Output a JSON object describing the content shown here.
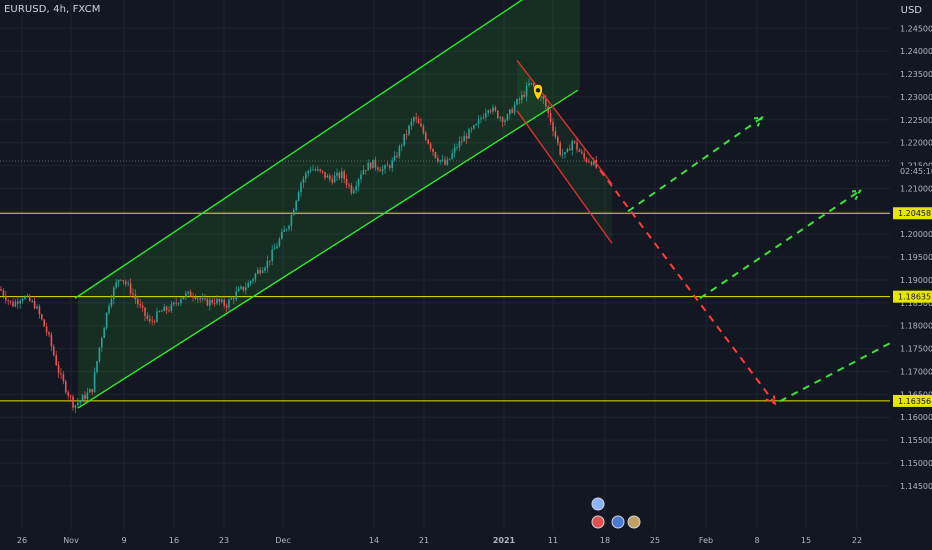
{
  "header": {
    "symbol_info": "EURUSD, 4h, FXCM",
    "currency": "USD"
  },
  "countdown": "02:45:10",
  "chart_data": {
    "type": "candlestick",
    "symbol": "EURUSD",
    "timeframe": "4h",
    "source": "FXCM",
    "currency": "USD",
    "y_ticks": [
      "1.24500",
      "1.24000",
      "1.23500",
      "1.23000",
      "1.22500",
      "1.22000",
      "1.21500",
      "1.21000",
      "1.20500",
      "1.20000",
      "1.19500",
      "1.19000",
      "1.18500",
      "1.18000",
      "1.17500",
      "1.17000",
      "1.16500",
      "1.16000",
      "1.15500",
      "1.15000",
      "1.14500"
    ],
    "ylim": [
      1.143,
      1.249
    ],
    "x_ticks": [
      "26",
      "Nov",
      "9",
      "16",
      "23",
      "Dec",
      "14",
      "21",
      "2021",
      "11",
      "18",
      "25",
      "Feb",
      "8",
      "15",
      "22"
    ],
    "price_path": [
      [
        0,
        1.188
      ],
      [
        12,
        1.1845
      ],
      [
        22,
        1.1865
      ],
      [
        35,
        1.1845
      ],
      [
        48,
        1.178
      ],
      [
        60,
        1.169
      ],
      [
        74,
        1.1625
      ],
      [
        82,
        1.164
      ],
      [
        92,
        1.166
      ],
      [
        100,
        1.176
      ],
      [
        110,
        1.186
      ],
      [
        120,
        1.191
      ],
      [
        130,
        1.188
      ],
      [
        140,
        1.184
      ],
      [
        150,
        1.1805
      ],
      [
        160,
        1.183
      ],
      [
        172,
        1.184
      ],
      [
        182,
        1.1865
      ],
      [
        194,
        1.187
      ],
      [
        204,
        1.185
      ],
      [
        215,
        1.1855
      ],
      [
        226,
        1.1845
      ],
      [
        236,
        1.187
      ],
      [
        248,
        1.189
      ],
      [
        258,
        1.192
      ],
      [
        268,
        1.194
      ],
      [
        280,
        1.199
      ],
      [
        290,
        1.203
      ],
      [
        300,
        1.211
      ],
      [
        310,
        1.2145
      ],
      [
        320,
        1.2135
      ],
      [
        330,
        1.212
      ],
      [
        342,
        1.213
      ],
      [
        352,
        1.2095
      ],
      [
        362,
        1.214
      ],
      [
        372,
        1.2155
      ],
      [
        384,
        1.214
      ],
      [
        394,
        1.216
      ],
      [
        404,
        1.221
      ],
      [
        414,
        1.2255
      ],
      [
        424,
        1.222
      ],
      [
        436,
        1.217
      ],
      [
        446,
        1.215
      ],
      [
        456,
        1.219
      ],
      [
        466,
        1.2215
      ],
      [
        476,
        1.2235
      ],
      [
        488,
        1.228
      ],
      [
        498,
        1.226
      ],
      [
        506,
        1.225
      ],
      [
        514,
        1.228
      ],
      [
        522,
        1.23
      ],
      [
        530,
        1.233
      ],
      [
        537,
        1.231
      ],
      [
        544,
        1.229
      ],
      [
        552,
        1.224
      ],
      [
        560,
        1.218
      ],
      [
        566,
        1.217
      ],
      [
        572,
        1.2205
      ],
      [
        578,
        1.2185
      ],
      [
        584,
        1.2165
      ],
      [
        592,
        1.216
      ],
      [
        598,
        1.214
      ]
    ],
    "levels": [
      {
        "label": "1.20458",
        "value": 1.20458
      },
      {
        "label": "1.18635",
        "value": 1.18635
      },
      {
        "label": "1.16356",
        "value": 1.16356
      }
    ],
    "rising_channel": {
      "upper": [
        [
          75,
          1.186
        ],
        [
          548,
          1.255
        ]
      ],
      "lower": [
        [
          78,
          1.162
        ],
        [
          578,
          1.2315
        ]
      ],
      "fill_until_x": 580
    },
    "falling_channel": {
      "upper": [
        [
          517,
          1.238
        ],
        [
          612,
          1.211
        ]
      ],
      "lower": [
        [
          517,
          1.227
        ],
        [
          612,
          1.198
        ]
      ]
    },
    "projections": {
      "red": [
        [
          600,
          1.214
        ],
        [
          775,
          1.163
        ]
      ],
      "green": [
        [
          [
            628,
            1.205
          ],
          [
            762,
            1.2255
          ]
        ],
        [
          [
            700,
            1.186
          ],
          [
            860,
            1.2095
          ]
        ],
        [
          [
            780,
            1.1635
          ],
          [
            932,
            1.181
          ]
        ]
      ]
    },
    "colors": {
      "background": "#131722",
      "grid": "#1f2330",
      "up_candle": "#26a69a",
      "down_candle": "#ef5350",
      "level_line": "#e6e600",
      "channel_green": "#2ee62e",
      "channel_red": "#e03030",
      "projection_red": "#ff3b3b",
      "projection_green": "#3ee03e",
      "text": "#b2b5be"
    },
    "marker_icon": "map-pin-icon",
    "event_icons": [
      "flag-us-icon",
      "flag-eu-icon",
      "globe-icon"
    ]
  }
}
